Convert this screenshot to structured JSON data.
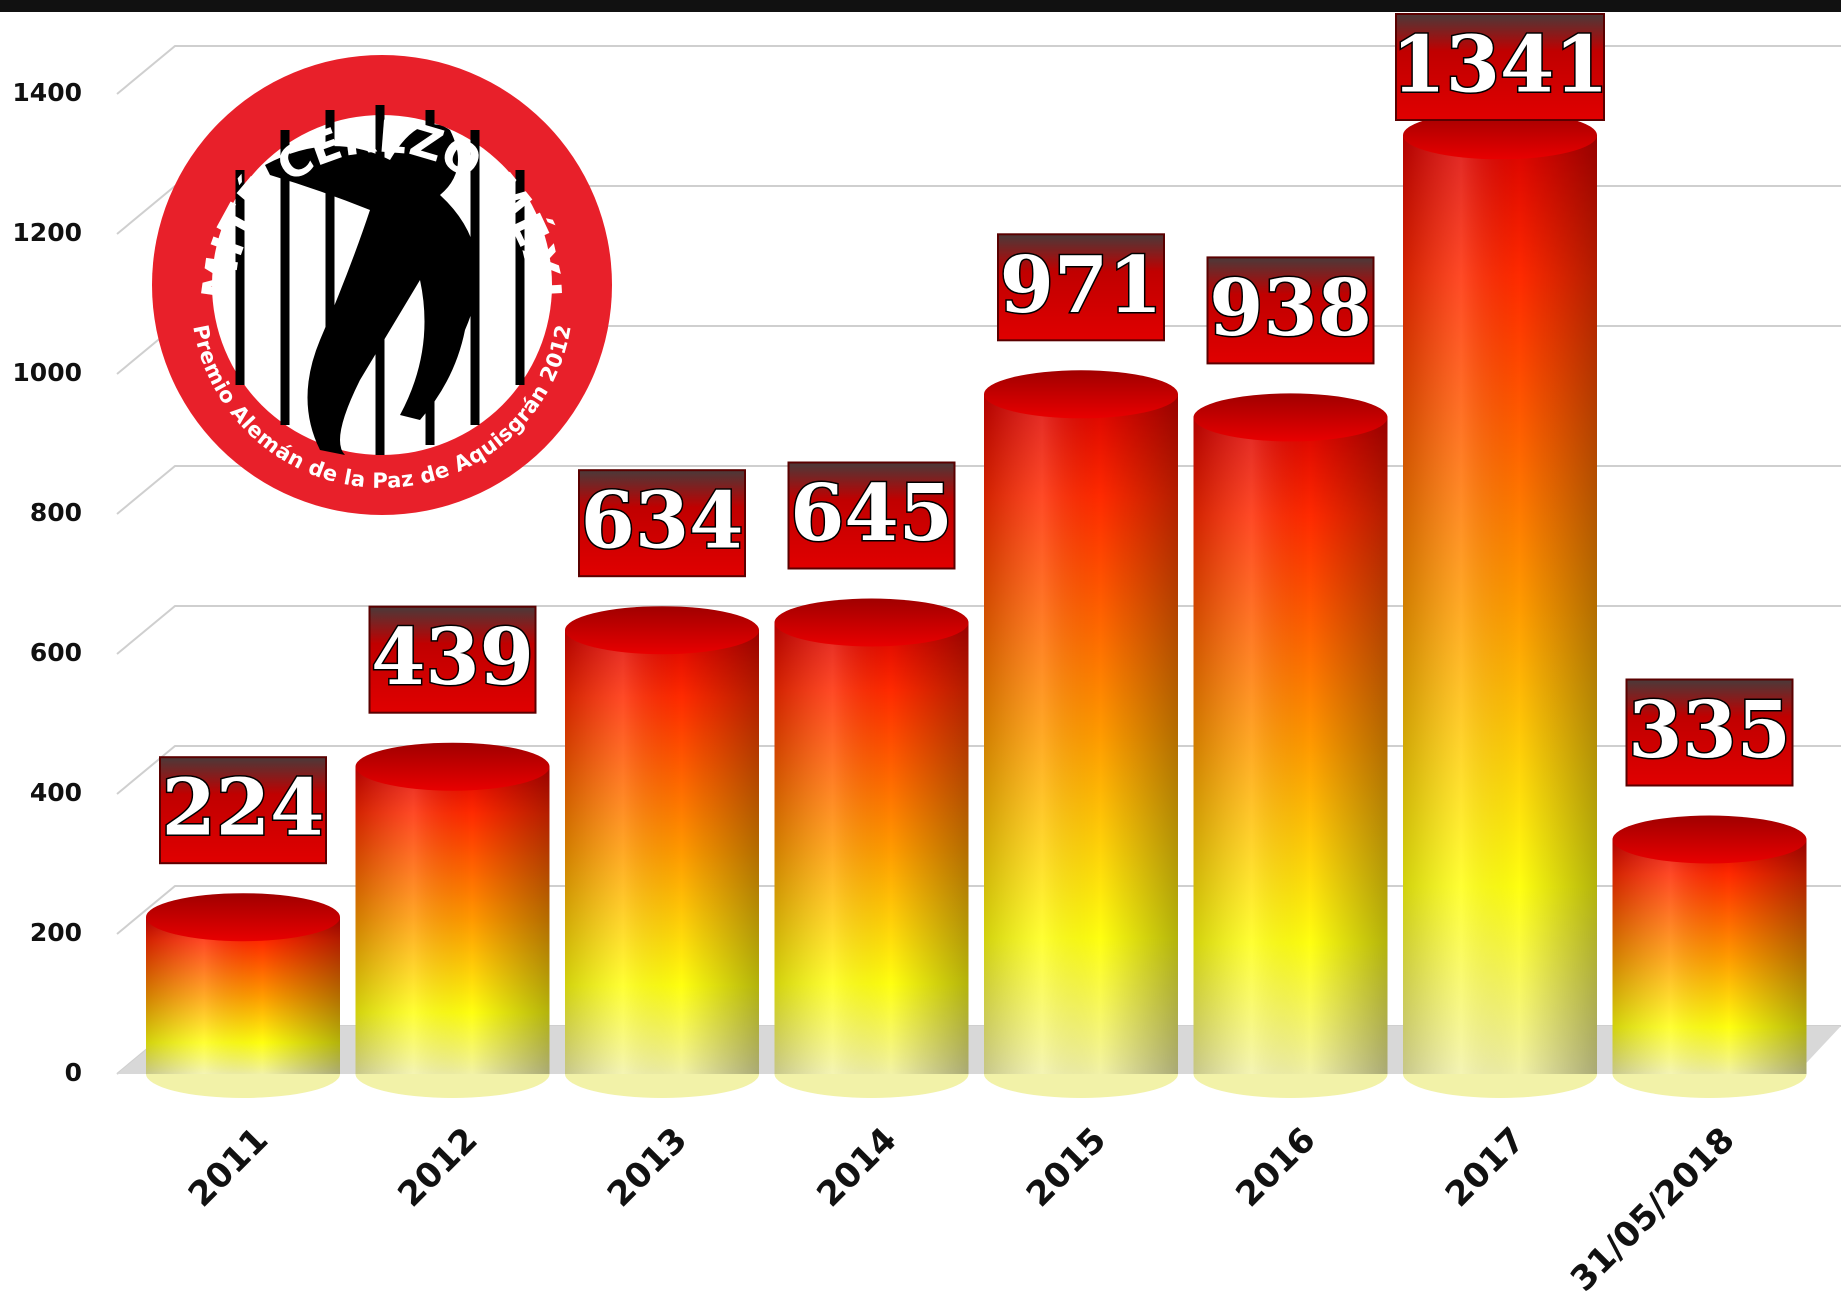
{
  "chart_data": {
    "type": "bar",
    "categories": [
      "2011",
      "2012",
      "2013",
      "2014",
      "2015",
      "2016",
      "2017",
      "31/05/2018"
    ],
    "values": [
      224,
      439,
      634,
      645,
      971,
      938,
      1341,
      335
    ],
    "ylim": [
      0,
      1400
    ],
    "yticks": [
      0,
      200,
      400,
      600,
      800,
      1000,
      1200,
      1400
    ],
    "grid": true,
    "color": "#e00000"
  },
  "logo": {
    "title": "COMITÉ CEREZO MÉXICO",
    "subtitle": "Premio Alemán de la Paz de Aquisgrán 2012"
  }
}
